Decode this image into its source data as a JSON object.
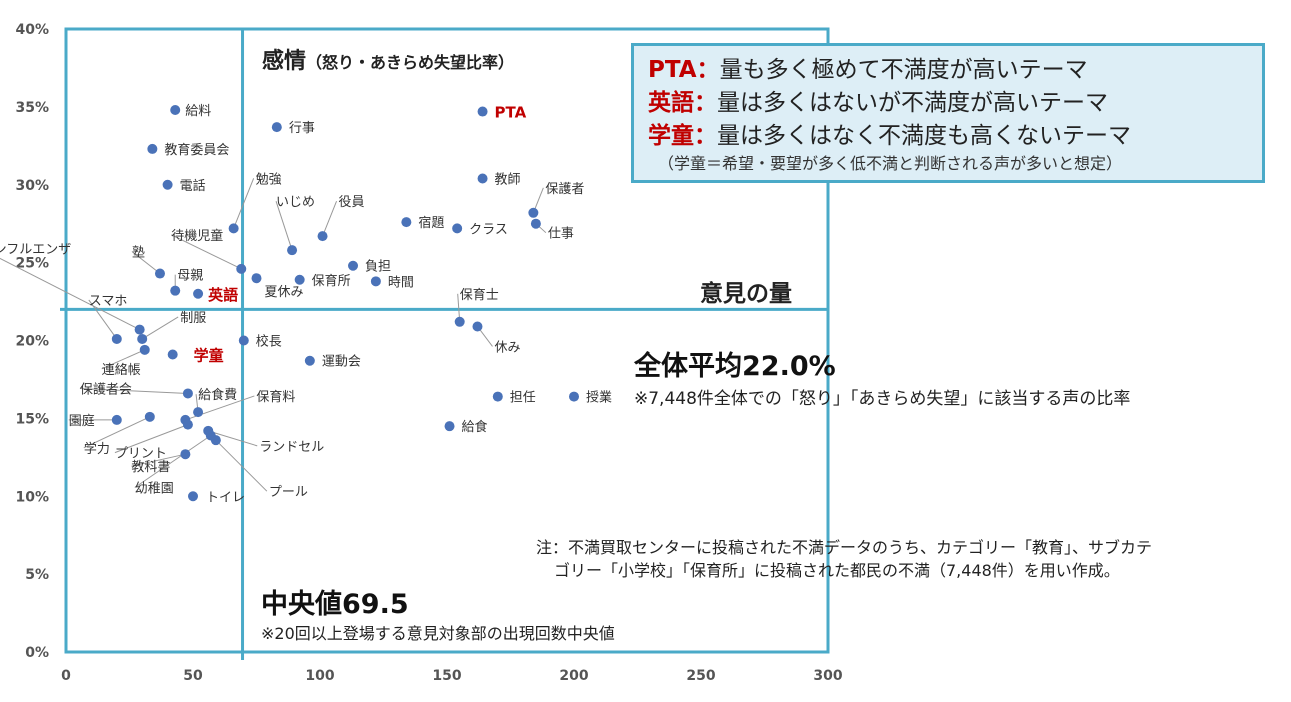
{
  "chart_data": {
    "type": "scatter",
    "xlim": [
      0,
      300
    ],
    "ylim": [
      0,
      40
    ],
    "x_ticks": [
      0,
      50,
      100,
      150,
      200,
      250,
      300
    ],
    "y_ticks": [
      0,
      5,
      10,
      15,
      20,
      25,
      30,
      35,
      40
    ],
    "x_tick_labels": [
      "0",
      "50",
      "100",
      "150",
      "200",
      "250",
      "300"
    ],
    "y_tick_labels": [
      "0%",
      "5%",
      "10%",
      "15%",
      "20%",
      "25%",
      "30%",
      "35%",
      "40%"
    ],
    "median_x": 69.5,
    "average_y": 22.0,
    "points": [
      {
        "label": "給料",
        "x": 43,
        "y": 34.8
      },
      {
        "label": "行事",
        "x": 83,
        "y": 33.7
      },
      {
        "label": "PTA",
        "x": 164,
        "y": 34.7,
        "highlight": true
      },
      {
        "label": "教育委員会",
        "x": 34,
        "y": 32.3
      },
      {
        "label": "電話",
        "x": 40,
        "y": 30.0
      },
      {
        "label": "教師",
        "x": 164,
        "y": 30.4
      },
      {
        "label": "保護者",
        "x": 184,
        "y": 28.2
      },
      {
        "label": "仕事",
        "x": 185,
        "y": 27.5
      },
      {
        "label": "勉強",
        "x": 66,
        "y": 27.2
      },
      {
        "label": "いじめ",
        "x": 89,
        "y": 25.8
      },
      {
        "label": "役員",
        "x": 101,
        "y": 26.7
      },
      {
        "label": "宿題",
        "x": 134,
        "y": 27.6
      },
      {
        "label": "クラス",
        "x": 154,
        "y": 27.2
      },
      {
        "label": "インフルエンザ",
        "x": 29,
        "y": 20.7
      },
      {
        "label": "待機児童",
        "x": 69,
        "y": 24.6
      },
      {
        "label": "塾",
        "x": 37,
        "y": 24.3
      },
      {
        "label": "母親",
        "x": 43,
        "y": 23.2
      },
      {
        "label": "英語",
        "x": 52,
        "y": 23.0,
        "highlight": true
      },
      {
        "label": "夏休み",
        "x": 75,
        "y": 24.0
      },
      {
        "label": "保育所",
        "x": 92,
        "y": 23.9
      },
      {
        "label": "負担",
        "x": 113,
        "y": 24.8
      },
      {
        "label": "時間",
        "x": 122,
        "y": 23.8
      },
      {
        "label": "保育士",
        "x": 155,
        "y": 21.2
      },
      {
        "label": "休み",
        "x": 162,
        "y": 20.9
      },
      {
        "label": "スマホ",
        "x": 20,
        "y": 20.1
      },
      {
        "label": "制服",
        "x": 30,
        "y": 20.1
      },
      {
        "label": "連絡帳",
        "x": 31,
        "y": 19.4
      },
      {
        "label": "校長",
        "x": 70,
        "y": 20.0
      },
      {
        "label": "学童",
        "x": 42,
        "y": 19.1,
        "highlight": true
      },
      {
        "label": "運動会",
        "x": 96,
        "y": 18.7
      },
      {
        "label": "保護者会",
        "x": 48,
        "y": 16.6
      },
      {
        "label": "給食費",
        "x": 52,
        "y": 15.4
      },
      {
        "label": "担任",
        "x": 170,
        "y": 16.4
      },
      {
        "label": "授業",
        "x": 200,
        "y": 16.4
      },
      {
        "label": "保育料",
        "x": 47,
        "y": 14.9
      },
      {
        "label": "園庭",
        "x": 20,
        "y": 14.9
      },
      {
        "label": "学力",
        "x": 33,
        "y": 15.1
      },
      {
        "label": "プリント",
        "x": 48,
        "y": 14.6
      },
      {
        "label": "ランドセル",
        "x": 56,
        "y": 14.2
      },
      {
        "label": "給食",
        "x": 151,
        "y": 14.5
      },
      {
        "label": "教科書",
        "x": 47,
        "y": 12.7
      },
      {
        "label": "プール",
        "x": 59,
        "y": 13.6
      },
      {
        "label": "幼稚園",
        "x": 57,
        "y": 13.9
      },
      {
        "label": "トイレ",
        "x": 50,
        "y": 10.0
      }
    ],
    "colors": {
      "point": "#4a72b8",
      "highlight": "#c00000",
      "guide": "#4aaac8",
      "axis_text": "#555555"
    }
  },
  "annotations": {
    "emotion_title": "感情",
    "emotion_sub": "（怒り・あきらめ失望比率）",
    "volume_title": "意見の量",
    "average_title": "全体平均22.0%",
    "average_note": "※7,448件全体での「怒り」「あきらめ失望」に該当する声の比率",
    "median_title": "中央値69.5",
    "median_note": "※20回以上登場する意見対象部の出現回数中央値",
    "footnote_1": "注：不満買取センターに投稿された不満データのうち、カテゴリー「教育」、サブカテ",
    "footnote_2": "ゴリー「小学校」「保育所」に投稿された都民の不満（7,448件）を用い作成。"
  },
  "legend": {
    "pta_key": "PTA：",
    "pta_text": "量も多く極めて不満度が高いテーマ",
    "eng_key": "英語：",
    "eng_text": "量は多くはないが不満度が高いテーマ",
    "gak_key": "学童：",
    "gak_text": "量は多くはなく不満度も高くないテーマ",
    "note": "（学童＝希望・要望が多く低不満と判断される声が多いと想定）"
  }
}
